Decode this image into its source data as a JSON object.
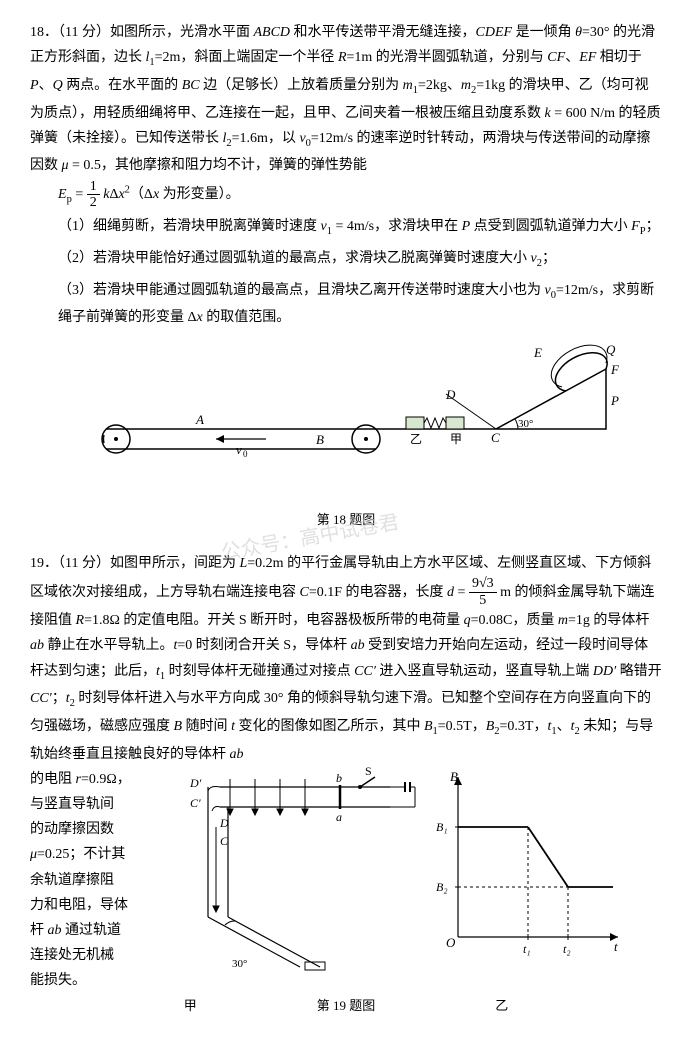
{
  "problems": [
    {
      "number": "18．",
      "points": "（11 分）",
      "intro": "如图所示，光滑水平面 <i>ABCD</i> 和水平传送带平滑无缝连接，<i>CDEF</i> 是一倾角 <i>θ</i>=30° 的光滑正方形斜面，边长 <i>l</i><sub>1</sub>=2m，斜面上端固定一个半径 <i>R</i>=1m 的光滑半圆弧轨道，分别与 <i>CF</i>、<i>EF</i> 相切于 <i>P</i>、<i>Q</i> 两点。在水平面的 <i>BC</i> 边（足够长）上放着质量分别为 <i>m</i><sub>1</sub>=2kg、<i>m</i><sub>2</sub>=1kg 的滑块甲、乙（均可视为质点），用轻质细绳将甲、乙连接在一起，且甲、乙间夹着一根被压缩且劲度系数 <i>k</i> = 600 N/m 的轻质弹簧（未拴接）。已知传送带长 <i>l</i><sub>2</sub>=1.6m，以 <i>v</i><sub>0</sub>=12m/s 的速率逆时针转动，两滑块与传送带间的动摩擦因数 <i>μ</i> = 0.5，其他摩擦和阻力均不计，弹簧的弹性势能 ",
      "formula_ep": "<i>E</i><sub>p</sub> = <span class=\"frac\"><span class=\"num\">1</span><span class=\"den\">2</span></span> <i>k</i>Δ<i>x</i><sup>2</sup>（Δ<i>x</i> 为形变量）。",
      "subs": [
        "（1）细绳剪断，若滑块甲脱离弹簧时速度 <i>v</i><sub>1</sub> = 4m/s，求滑块甲在 <i>P</i> 点受到圆弧轨道弹力大小 <i>F</i><sub>P</sub>；",
        "（2）若滑块甲能恰好通过圆弧轨道的最高点，求滑块乙脱离弹簧时速度大小 <i>v</i><sub>2</sub>；",
        "（3）若滑块甲能通过圆弧轨道的最高点，且滑块乙离开传送带时速度大小也为 <i>v</i><sub>0</sub>=12m/s，求剪断绳子前弹簧的形变量 Δ<i>x</i> 的取值范围。"
      ],
      "figure_caption": "第 18 题图",
      "figure": {
        "labels": [
          "A",
          "B",
          "C",
          "D",
          "E",
          "F",
          "P",
          "Q",
          "甲",
          "乙",
          "v₀",
          "30°"
        ],
        "stroke": "#000000",
        "fill_bg": "#ffffff",
        "hatch_fill": "#d8e8d0"
      }
    },
    {
      "number": "19．",
      "points": "（11 分）",
      "intro": "如图甲所示，间距为 <i>L</i>=0.2m 的平行金属导轨由上方水平区域、左侧竖直区域、下方倾斜区域依次对接组成，上方导轨右端连接电容 <i>C</i>=0.1F 的电容器，长度 <i>d</i> = <span class=\"frac\"><span class=\"num\">9√3</span><span class=\"den\">5</span></span> m 的倾斜金属导轨下端连接阻值 <i>R</i>=1.8Ω 的定值电阻。开关 S 断开时，电容器极板所带的电荷量 <i>q</i>=0.08C，质量 <i>m</i>=1g 的导体杆 <i>ab</i> 静止在水平导轨上。<i>t</i>=0 时刻闭合开关 S，导体杆 <i>ab</i> 受到安培力开始向左运动，经过一段时间导体杆达到匀速；此后，<i>t</i><sub>1</sub> 时刻导体杆无碰撞通过对接点 <i>CC′</i> 进入竖直导轨运动，竖直导轨上端 <i>DD′</i> 略错开 <i>CC′</i>；<i>t</i><sub>2</sub> 时刻导体杆进入与水平方向成 30° 角的倾斜导轨匀速下滑。已知整个空间存在方向竖直向下的匀强磁场，磁感应强度 <i>B</i> 随时间 <i>t</i> 变化的图像如图乙所示，其中 <i>B</i><sub>1</sub>=0.5T，<i>B</i><sub>2</sub>=0.3T，<i>t</i><sub>1</sub>、<i>t</i><sub>2</sub> 未知；与导轨始终垂直且接触良好的导体杆 <i>ab</i>",
      "left_text_lines": [
        "的电阻 <i>r</i>=0.9Ω，",
        "与竖直导轨间",
        "的动摩擦因数",
        "<i>μ</i>=0.25；不计其",
        "余轨道摩擦阻",
        "力和电阻，导体",
        "杆 <i>ab</i> 通过轨道",
        "连接处无机械",
        "能损失。"
      ],
      "figure_caption_left": "甲",
      "figure_caption_main": "第 19 题图",
      "figure_caption_right": "乙",
      "figure_jia": {
        "labels": [
          "D′",
          "C′",
          "D",
          "C",
          "a",
          "b",
          "S",
          "30°"
        ],
        "stroke": "#000000"
      },
      "figure_yi": {
        "axis_labels": [
          "B",
          "t",
          "O"
        ],
        "y_ticks": [
          "B₁",
          "B₂"
        ],
        "x_ticks": [
          "t₁",
          "t₂"
        ],
        "stroke": "#000000",
        "line_color": "#000000"
      }
    }
  ],
  "watermark_text": "公众号：高中试卷君"
}
